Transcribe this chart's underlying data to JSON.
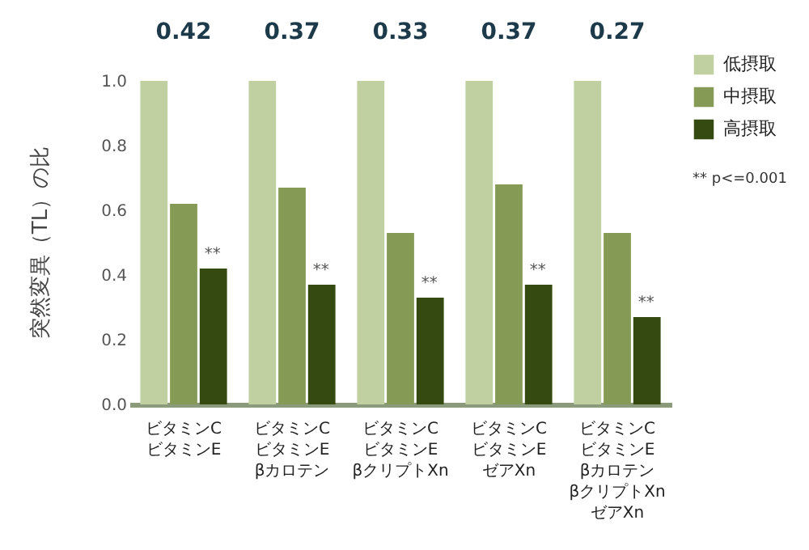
{
  "chart_data": {
    "type": "bar",
    "ylabel": "突然変異（TL）の比",
    "categories": [
      "ビタミンC\nビタミンE",
      "ビタミンC\nビタミンE\nβカロテン",
      "ビタミンC\nビタミンE\nβクリプトXn",
      "ビタミンC\nビタミンE\nゼアXn",
      "ビタミンC\nビタミンE\nβカロテン\nβクリプトXn\nゼアXn"
    ],
    "series": [
      {
        "name": "低摂取",
        "color": "#c0d0a0",
        "values": [
          1.0,
          1.0,
          1.0,
          1.0,
          1.0
        ]
      },
      {
        "name": "中摂取",
        "color": "#849a55",
        "values": [
          0.62,
          0.67,
          0.53,
          0.68,
          0.53
        ]
      },
      {
        "name": "高摂取",
        "color": "#354a10",
        "values": [
          0.42,
          0.37,
          0.33,
          0.37,
          0.27
        ],
        "value_labels": [
          "0.42",
          "0.37",
          "0.33",
          "0.37",
          "0.27"
        ]
      }
    ],
    "ylim": [
      0,
      1.0
    ],
    "yticks": [
      {
        "value": 0,
        "label": "0.0"
      },
      {
        "value": 0.2,
        "label": "0.2"
      },
      {
        "value": 0.4,
        "label": "0.4"
      },
      {
        "value": 0.6,
        "label": "0.6"
      },
      {
        "value": 0.8,
        "label": "0.8"
      },
      {
        "value": 1.0,
        "label": "1.0"
      }
    ],
    "grid": false,
    "legend": "top right",
    "annotations": [
      "** p<=0.001",
      "**",
      "**",
      "**",
      "**",
      "**"
    ]
  }
}
